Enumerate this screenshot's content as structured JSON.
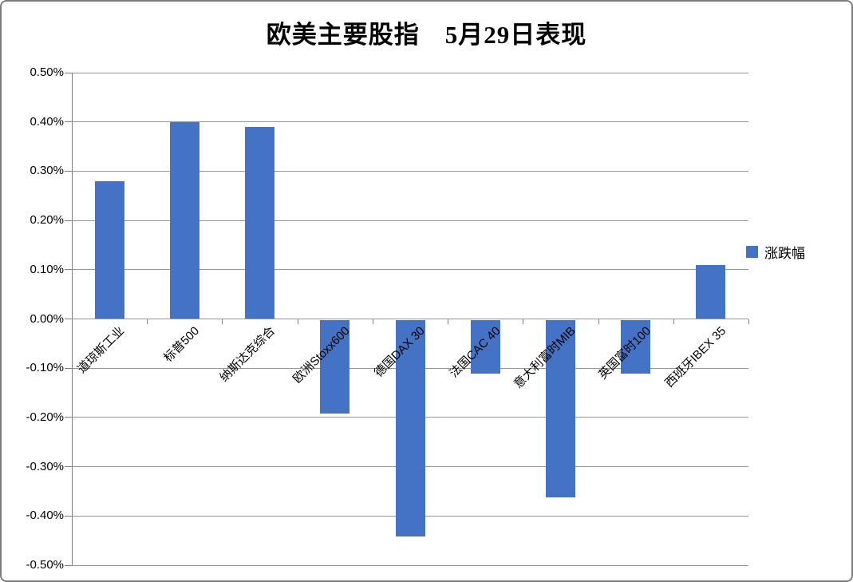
{
  "chart_data": {
    "type": "bar",
    "title": "欧美主要股指　5月29日表现",
    "xlabel": "",
    "ylabel": "",
    "categories": [
      "道琼斯工业",
      "标普500",
      "纳斯达克综合",
      "欧洲Stoxx600",
      "德国DAX 30",
      "法国CAC 40",
      "意大利富时MIB",
      "英国富时100",
      "西班牙IBEX 35"
    ],
    "series": [
      {
        "name": "涨跌幅",
        "values": [
          0.28,
          0.4,
          0.39,
          -0.19,
          -0.44,
          -0.11,
          -0.36,
          -0.11,
          0.11
        ]
      }
    ],
    "value_unit": "%",
    "ylim": [
      -0.5,
      0.5
    ],
    "y_ticks": [
      {
        "value": 0.5,
        "label": "0.50%"
      },
      {
        "value": 0.4,
        "label": "0.40%"
      },
      {
        "value": 0.3,
        "label": "0.30%"
      },
      {
        "value": 0.2,
        "label": "0.20%"
      },
      {
        "value": 0.1,
        "label": "0.10%"
      },
      {
        "value": 0.0,
        "label": "0.00%"
      },
      {
        "value": -0.1,
        "label": "-0.10%"
      },
      {
        "value": -0.2,
        "label": "-0.20%"
      },
      {
        "value": -0.3,
        "label": "-0.30%"
      },
      {
        "value": -0.4,
        "label": "-0.40%"
      },
      {
        "value": -0.5,
        "label": "-0.50%"
      }
    ],
    "grid": true,
    "legend_position": "right",
    "legend": [
      {
        "label": "涨跌幅",
        "color": "#4472C4"
      }
    ],
    "bar_color": "#4472C4",
    "gridline_color": "#969696",
    "axis_color": "#808080"
  }
}
